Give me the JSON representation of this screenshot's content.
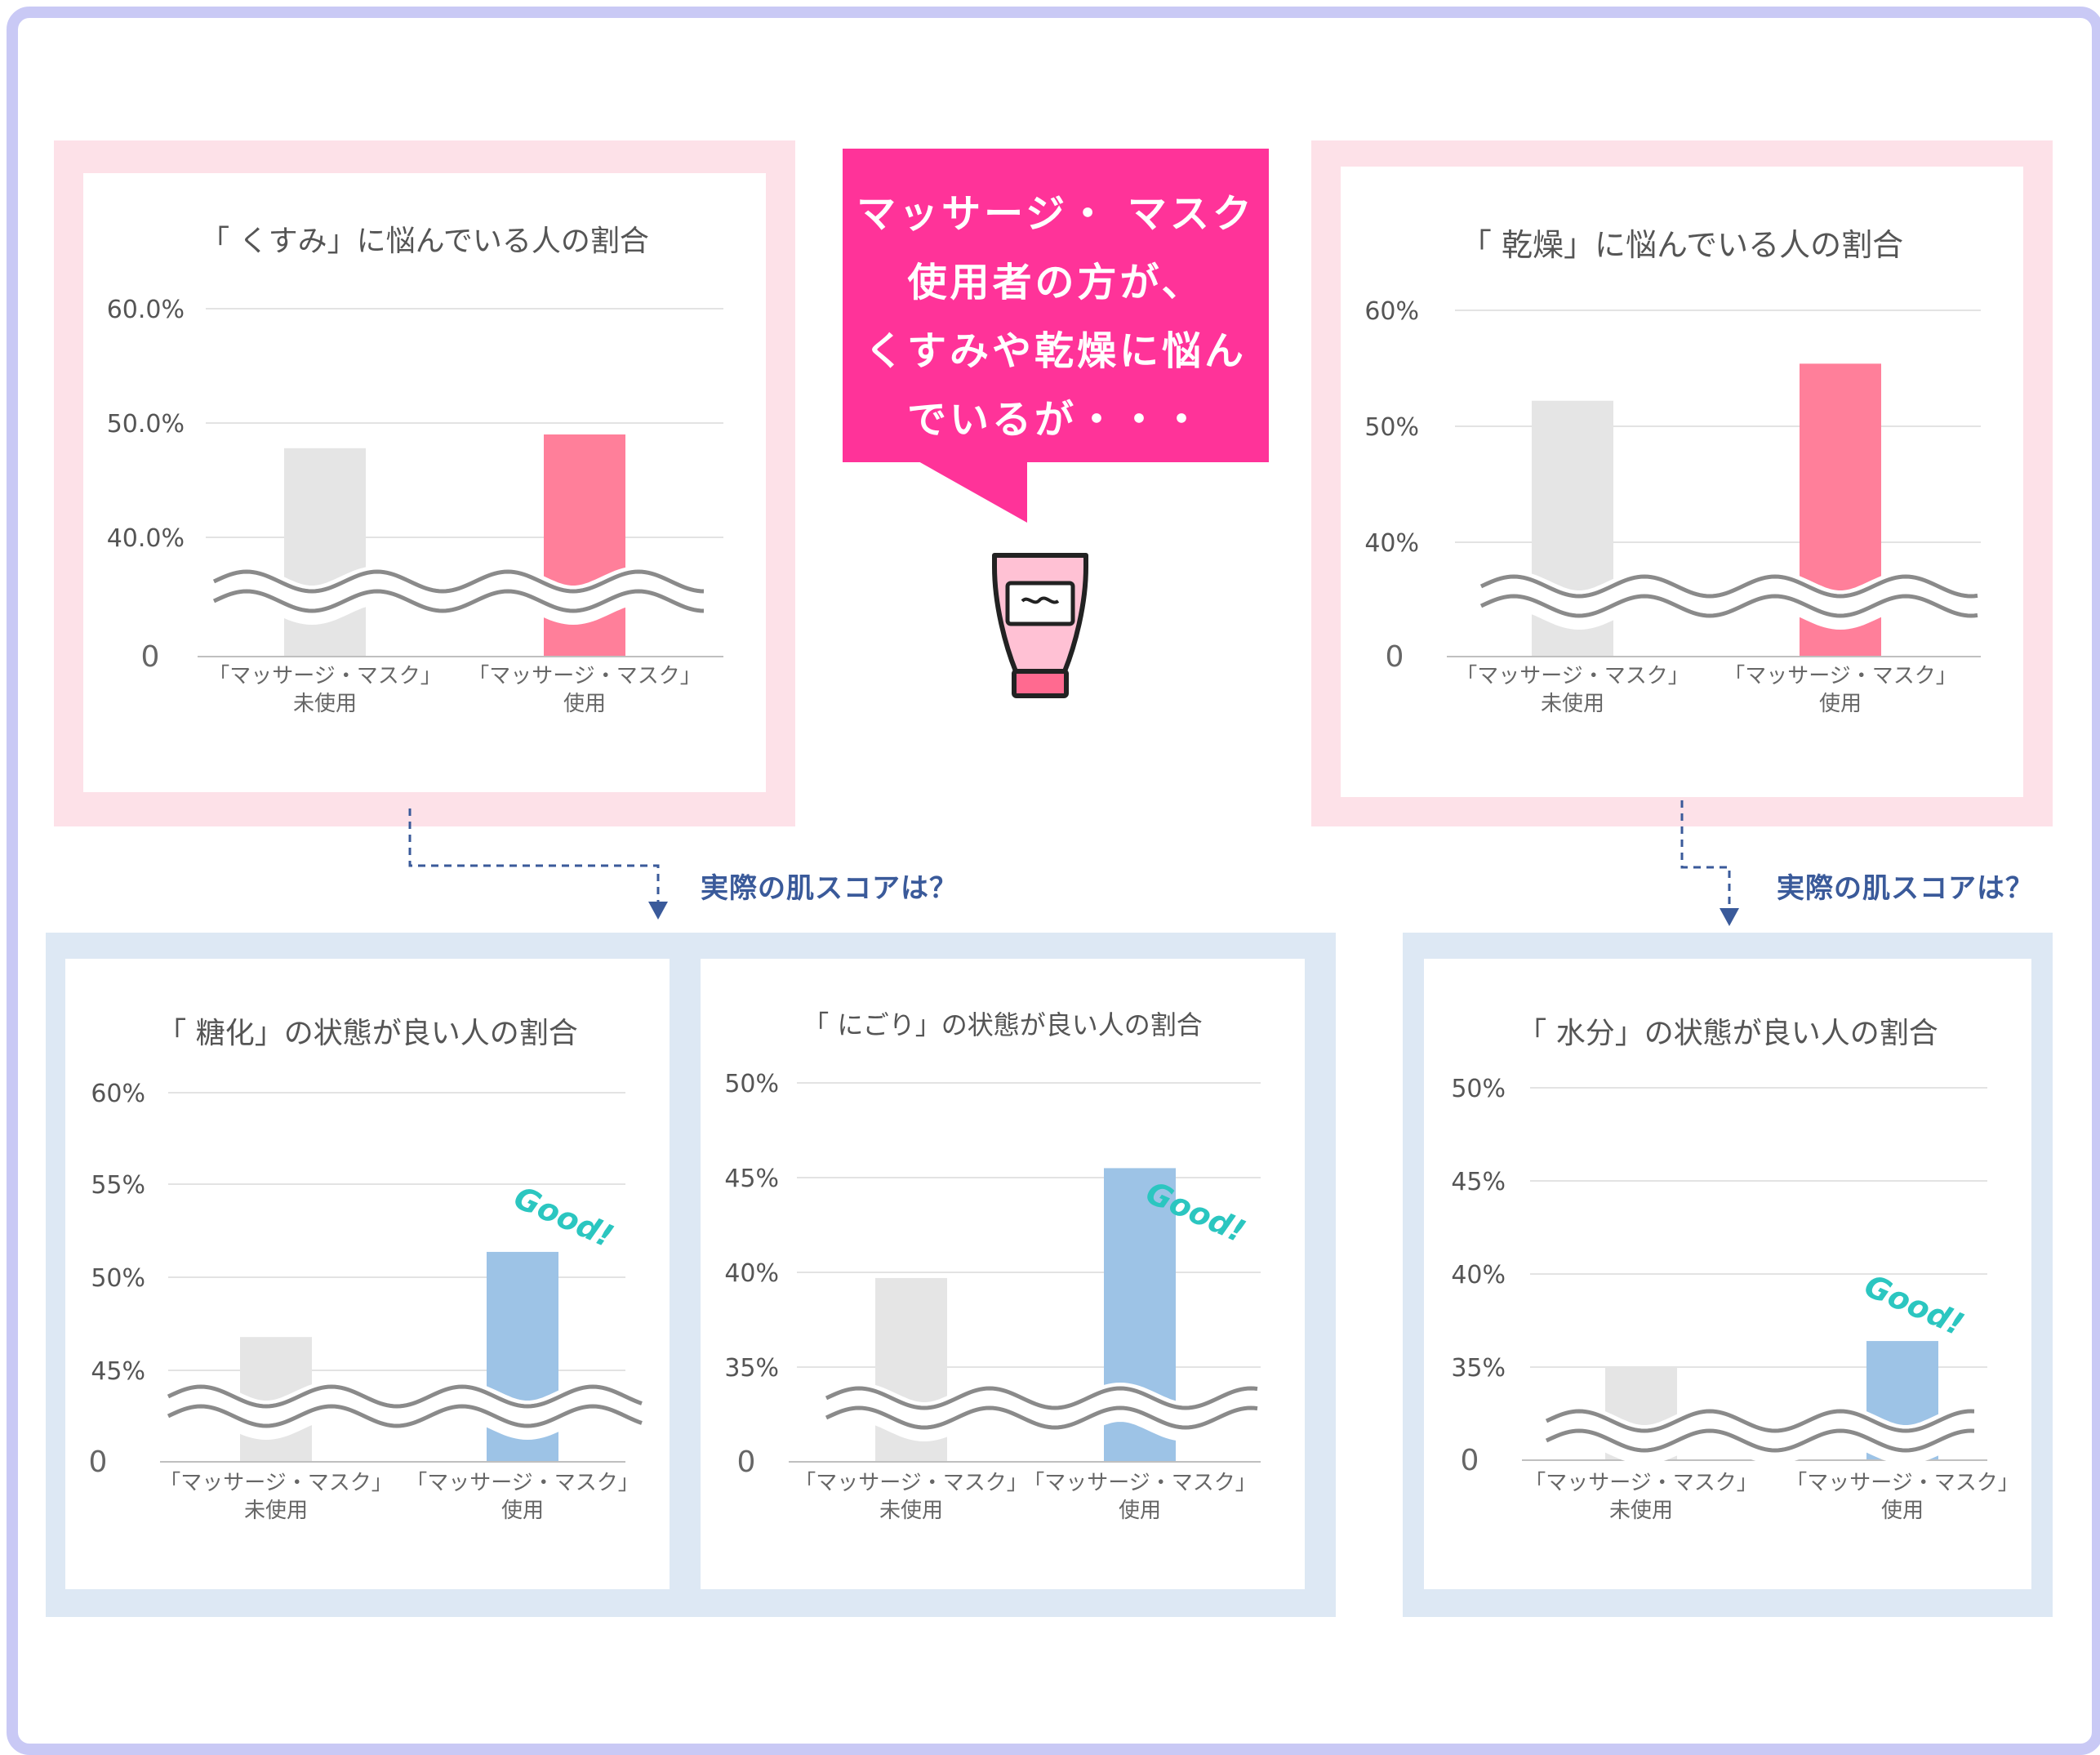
{
  "bubble": {
    "lines": [
      "マッサージ・ マスク",
      "使用者の方が、",
      "くすみや乾燥に悩ん",
      "でいるが・・・"
    ]
  },
  "question_label": "実際の肌スコアは？",
  "good_label": "Good!",
  "colors": {
    "frame": "#c9c9f5",
    "pink_panel": "#fde1e8",
    "blue_panel": "#dde8f4",
    "bubble": "#ff3399",
    "unused_bar": "#e5e5e5",
    "used_bar_pink": "#ff7f9a",
    "used_bar_blue": "#9dc3e6",
    "good_text": "#2bc6c0",
    "connector": "#3a5a9a"
  },
  "icons": [
    "cream-tube-icon",
    "wavy-break-icon"
  ],
  "chart_data": [
    {
      "type": "bar",
      "title": "「 くすみ」に悩んでいる人の割合",
      "categories": [
        [
          "「マッサージ・マスク」",
          "未使用"
        ],
        [
          "「マッサージ・マスク」",
          "使用"
        ]
      ],
      "values": [
        47.8,
        49.0
      ],
      "value_unit": "%",
      "yticks": [
        "0",
        "40.0%",
        "50.0%",
        "60.0%"
      ],
      "ylim": [
        0,
        60
      ],
      "axis_break": true,
      "grid": true
    },
    {
      "type": "bar",
      "title": "「 乾燥」に悩んでいる人の割合",
      "categories": [
        [
          "「マッサージ・マスク」",
          "未使用"
        ],
        [
          "「マッサージ・マスク」",
          "使用"
        ]
      ],
      "values": [
        52.2,
        55.4
      ],
      "value_unit": "%",
      "yticks": [
        "0",
        "40%",
        "50%",
        "60%"
      ],
      "ylim": [
        0,
        60
      ],
      "axis_break": true,
      "grid": true
    },
    {
      "type": "bar",
      "title": "「 糖化」の状態が良い人の割合",
      "categories": [
        [
          "「マッサージ・マスク」",
          "未使用"
        ],
        [
          "「マッサージ・マスク」",
          "使用"
        ]
      ],
      "values": [
        46.8,
        51.4
      ],
      "value_unit": "%",
      "yticks": [
        "0",
        "45%",
        "50%",
        "55%",
        "60%"
      ],
      "ylim": [
        0,
        60
      ],
      "axis_break": true,
      "grid": true,
      "annotation": "Good!"
    },
    {
      "type": "bar",
      "title": "「 にごり」の状態が良い人の割合",
      "categories": [
        [
          "「マッサージ・マスク」",
          "未使用"
        ],
        [
          "「マッサージ・マスク」",
          "使用"
        ]
      ],
      "values": [
        39.7,
        45.5
      ],
      "value_unit": "%",
      "yticks": [
        "0",
        "35%",
        "40%",
        "45%",
        "50%"
      ],
      "ylim": [
        0,
        50
      ],
      "axis_break": true,
      "grid": true,
      "annotation": "Good!"
    },
    {
      "type": "bar",
      "title": "「 水分」の状態が良い人の割合",
      "categories": [
        [
          "「マッサージ・マスク」",
          "未使用"
        ],
        [
          "「マッサージ・マスク」",
          "使用"
        ]
      ],
      "values": [
        35.0,
        36.4
      ],
      "value_unit": "%",
      "yticks": [
        "0",
        "35%",
        "40%",
        "45%",
        "50%"
      ],
      "ylim": [
        0,
        50
      ],
      "axis_break": true,
      "grid": true,
      "annotation": "Good!"
    }
  ]
}
